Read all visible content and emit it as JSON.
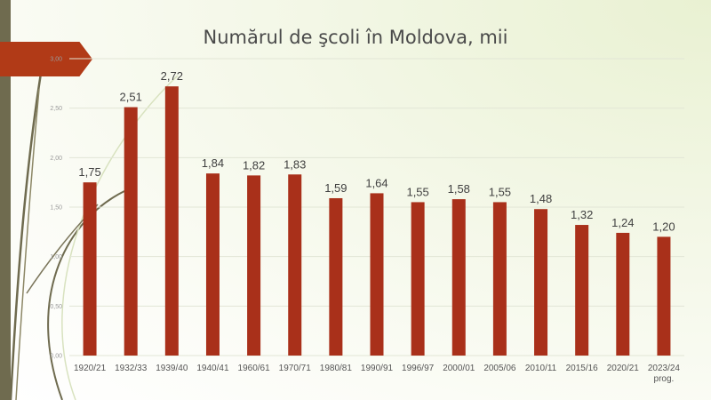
{
  "chart_data": {
    "type": "bar",
    "title": "Numărul de şcoli în Moldova, mii",
    "categories": [
      "1920/21",
      "1932/33",
      "1939/40",
      "1940/41",
      "1960/61",
      "1970/71",
      "1980/81",
      "1990/91",
      "1996/97",
      "2000/01",
      "2005/06",
      "2010/11",
      "2015/16",
      "2020/21",
      "2023/24"
    ],
    "category_notes": [
      "",
      "",
      "",
      "",
      "",
      "",
      "",
      "",
      "",
      "",
      "",
      "",
      "",
      "",
      "prog."
    ],
    "values": [
      1.75,
      2.51,
      2.72,
      1.84,
      1.82,
      1.83,
      1.59,
      1.64,
      1.55,
      1.58,
      1.55,
      1.48,
      1.32,
      1.24,
      1.2
    ],
    "data_labels": [
      "1,75",
      "2,51",
      "2,72",
      "1,84",
      "1,82",
      "1,83",
      "1,59",
      "1,64",
      "1,55",
      "1,58",
      "1,55",
      "1,48",
      "1,32",
      "1,24",
      "1,20"
    ],
    "yticks": [
      0,
      0.5,
      1.0,
      1.5,
      2.0,
      2.5,
      3.0
    ],
    "ytick_labels": [
      "0,00",
      "0,50",
      "1,00",
      "1,50",
      "2,00",
      "2,50",
      "3,00"
    ],
    "ylim": [
      0,
      3
    ],
    "grid": true,
    "bar_color": "#a9301a",
    "xlabel": "",
    "ylabel": ""
  },
  "colors": {
    "accent": "#b13a17",
    "strip": "#6f6b4f"
  }
}
